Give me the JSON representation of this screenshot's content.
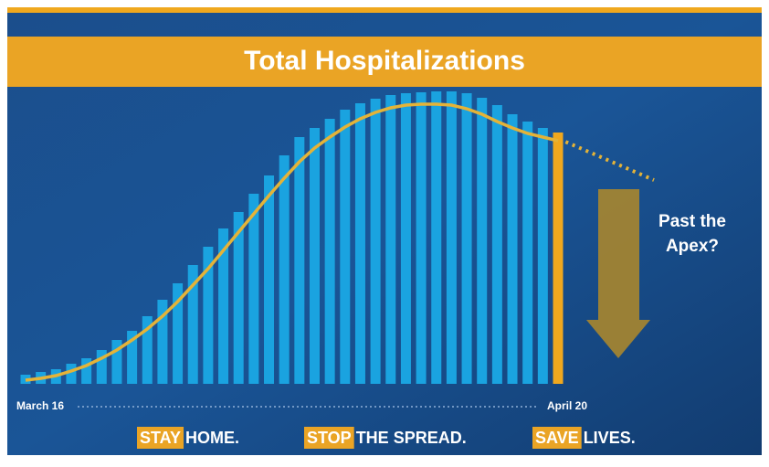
{
  "chart_data": {
    "type": "bar",
    "title": "Total Hospitalizations",
    "categories": [
      "March 16",
      null,
      null,
      null,
      null,
      null,
      null,
      null,
      null,
      null,
      null,
      null,
      null,
      null,
      null,
      null,
      null,
      null,
      null,
      null,
      null,
      null,
      null,
      null,
      null,
      null,
      null,
      null,
      null,
      null,
      null,
      null,
      null,
      null,
      null,
      "April 20"
    ],
    "series": [
      {
        "type": "bar",
        "color": "#1aa3e0",
        "highlight_color": "#f0a81e",
        "values": [
          10,
          13,
          16,
          22,
          28,
          37,
          48,
          58,
          74,
          92,
          110,
          130,
          150,
          170,
          188,
          208,
          228,
          250,
          270,
          280,
          290,
          300,
          307,
          312,
          316,
          318,
          319,
          320,
          320,
          318,
          313,
          305,
          295,
          287,
          280,
          275
        ]
      },
      {
        "type": "line",
        "color": "#e4b338",
        "values": [
          4,
          6,
          9,
          14,
          20,
          28,
          37,
          48,
          60,
          74,
          90,
          108,
          126,
          146,
          166,
          186,
          206,
          225,
          243,
          258,
          270,
          281,
          290,
          297,
          302,
          305,
          306,
          306,
          305,
          301,
          295,
          287,
          280,
          274,
          270,
          266
        ]
      }
    ],
    "ylim": [
      0,
      330
    ],
    "annotation": [
      "Past the",
      "Apex?"
    ],
    "slogans": [
      {
        "highlight": "STAY",
        "text": "HOME."
      },
      {
        "highlight": "STOP",
        "text": "THE SPREAD."
      },
      {
        "highlight": "SAVE",
        "text": "LIVES."
      }
    ]
  }
}
